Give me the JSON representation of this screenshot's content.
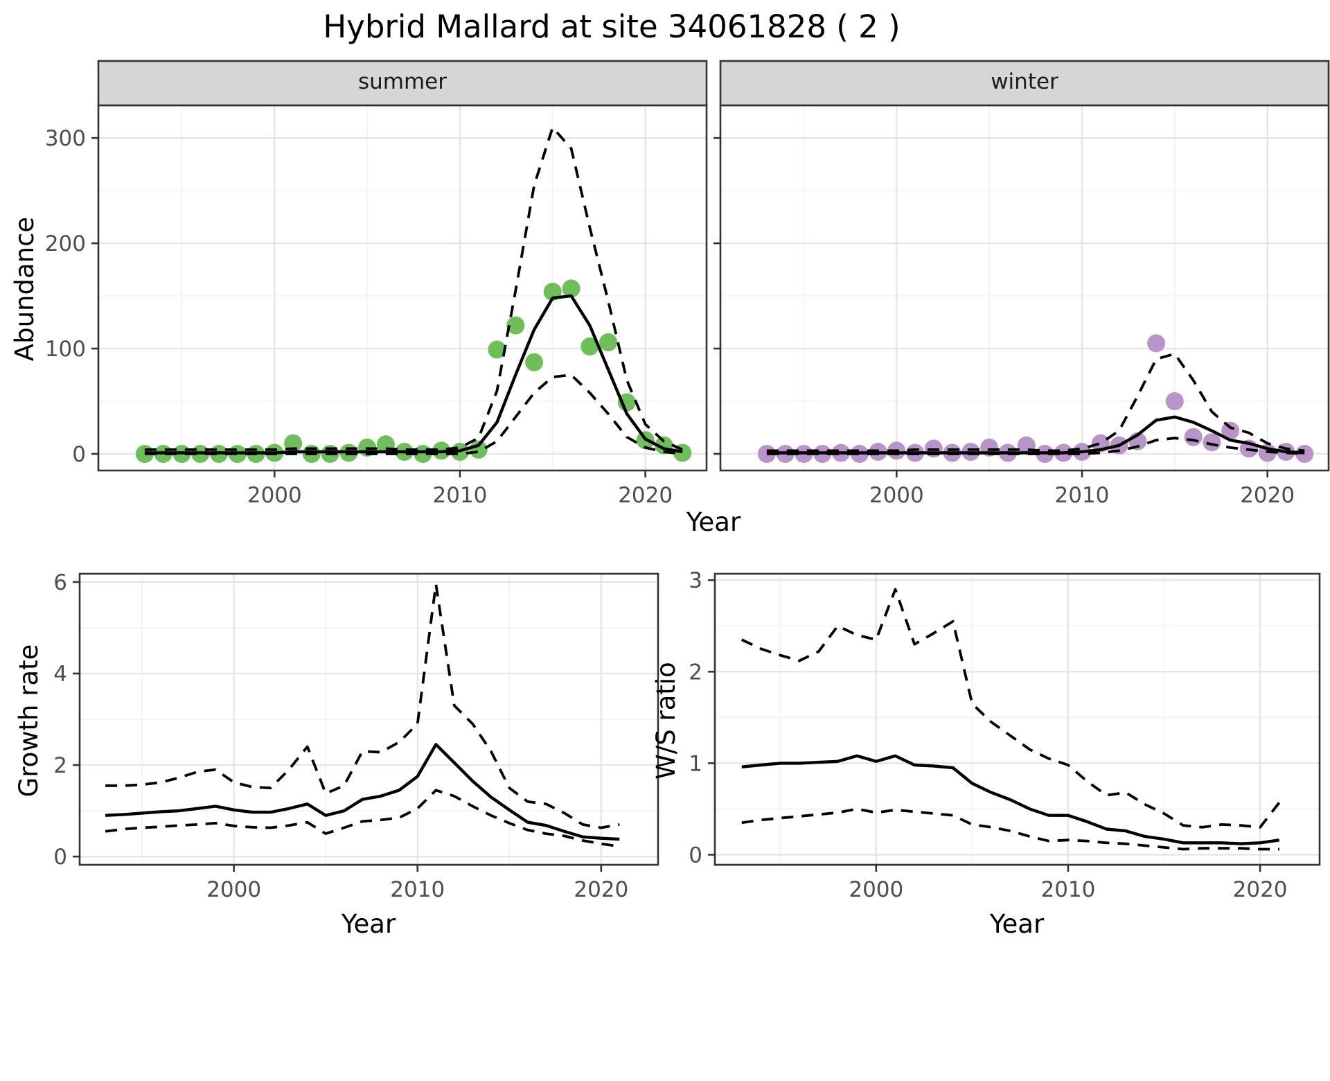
{
  "page": {
    "title": "Hybrid Mallard at site 34061828 ( 2 )"
  },
  "colors": {
    "summer_point": "#6EBE5A",
    "winter_point": "#B894C8",
    "line": "#000000",
    "grid_major": "#E4E4E4",
    "grid_minor": "#F2F2F2",
    "strip_fill": "#D6D6D6",
    "panel_border": "#333333",
    "tick_text": "#4D4D4D"
  },
  "chart_data": [
    {
      "id": "abundance",
      "type": "line+scatter",
      "title": "Hybrid Mallard at site 34061828 ( 2 )",
      "xlabel": "Year",
      "ylabel": "Abundance",
      "x_ticks": [
        2000,
        2010,
        2020
      ],
      "x_minor": [
        1995,
        2005,
        2015
      ],
      "y_ticks": [
        0,
        100,
        200,
        300
      ],
      "y_minor": [
        50,
        150,
        250
      ],
      "xlim": [
        1990.5,
        2023.3
      ],
      "ylim": [
        -15.8,
        331
      ],
      "grid": true,
      "legend": "none",
      "years": [
        1993,
        1994,
        1995,
        1996,
        1997,
        1998,
        1999,
        2000,
        2001,
        2002,
        2003,
        2004,
        2005,
        2006,
        2007,
        2008,
        2009,
        2010,
        2011,
        2012,
        2013,
        2014,
        2015,
        2016,
        2017,
        2018,
        2019,
        2020,
        2021,
        2022
      ],
      "facets": [
        {
          "label": "summer",
          "point_color": "#6EBE5A",
          "observed": [
            0,
            0,
            0,
            0,
            0,
            0,
            0,
            1,
            10,
            0,
            0,
            1,
            6,
            9,
            2,
            0,
            3,
            2,
            4,
            99,
            122,
            87,
            154,
            157,
            102,
            106,
            49,
            13,
            8,
            1
          ],
          "fit": [
            1,
            1,
            1,
            1,
            1,
            1,
            1,
            1,
            2,
            2,
            2,
            2,
            2,
            2,
            2,
            2,
            2,
            3,
            8,
            30,
            75,
            118,
            148,
            150,
            122,
            80,
            38,
            14,
            5,
            2
          ],
          "upper": [
            4,
            4,
            4,
            4,
            4,
            4,
            4,
            4,
            5,
            5,
            5,
            5,
            5,
            5,
            4,
            4,
            4,
            6,
            15,
            60,
            155,
            255,
            310,
            290,
            215,
            145,
            70,
            28,
            12,
            4
          ],
          "lower": [
            0,
            0,
            0,
            0,
            0,
            0,
            0,
            0,
            0,
            0,
            0,
            0,
            0,
            0,
            0,
            0,
            0,
            0,
            2,
            12,
            35,
            58,
            73,
            75,
            58,
            38,
            16,
            6,
            2,
            0
          ]
        },
        {
          "label": "winter",
          "point_color": "#B894C8",
          "observed": [
            0,
            0,
            0,
            0,
            1,
            0,
            2,
            3,
            1,
            5,
            1,
            2,
            6,
            1,
            8,
            0,
            1,
            2,
            10,
            8,
            12,
            105,
            50,
            16,
            11,
            22,
            5,
            1,
            2,
            0
          ],
          "fit": [
            1,
            1,
            1,
            1,
            1,
            1,
            1,
            1,
            1,
            1,
            1,
            1,
            1,
            1,
            1,
            1,
            1,
            2,
            4,
            8,
            18,
            32,
            35,
            30,
            22,
            13,
            10,
            5,
            2,
            1
          ],
          "upper": [
            3,
            3,
            3,
            3,
            3,
            3,
            3,
            3,
            4,
            4,
            4,
            4,
            4,
            4,
            4,
            3,
            3,
            5,
            10,
            22,
            55,
            90,
            95,
            70,
            40,
            25,
            20,
            10,
            5,
            3
          ],
          "lower": [
            0,
            0,
            0,
            0,
            0,
            0,
            0,
            0,
            0,
            0,
            0,
            0,
            0,
            0,
            0,
            0,
            0,
            0,
            1,
            3,
            7,
            13,
            15,
            13,
            9,
            6,
            4,
            2,
            1,
            0
          ]
        }
      ]
    },
    {
      "id": "growth_rate",
      "type": "line",
      "xlabel": "Year",
      "ylabel": "Growth rate",
      "x_ticks": [
        2000,
        2010,
        2020
      ],
      "x_minor": [
        1995,
        2005,
        2015
      ],
      "y_ticks": [
        0,
        2,
        4,
        6
      ],
      "y_minor": [
        1,
        3,
        5
      ],
      "xlim": [
        1991.6,
        2023.1
      ],
      "ylim": [
        -0.18,
        6.18
      ],
      "grid": true,
      "legend": "none",
      "years": [
        1993,
        1994,
        1995,
        1996,
        1997,
        1998,
        1999,
        2000,
        2001,
        2002,
        2003,
        2004,
        2005,
        2006,
        2007,
        2008,
        2009,
        2010,
        2011,
        2012,
        2013,
        2014,
        2015,
        2016,
        2017,
        2018,
        2019,
        2020,
        2021
      ],
      "fit": [
        0.9,
        0.92,
        0.95,
        0.98,
        1.0,
        1.05,
        1.1,
        1.02,
        0.97,
        0.97,
        1.05,
        1.15,
        0.9,
        1.0,
        1.25,
        1.32,
        1.45,
        1.75,
        2.45,
        2.05,
        1.65,
        1.3,
        1.02,
        0.75,
        0.68,
        0.55,
        0.43,
        0.4,
        0.38
      ],
      "upper": [
        1.55,
        1.55,
        1.57,
        1.62,
        1.72,
        1.85,
        1.9,
        1.62,
        1.52,
        1.5,
        1.9,
        2.4,
        1.38,
        1.55,
        2.3,
        2.28,
        2.5,
        2.9,
        5.95,
        3.3,
        2.9,
        2.3,
        1.5,
        1.2,
        1.15,
        0.95,
        0.7,
        0.63,
        0.7
      ],
      "lower": [
        0.55,
        0.6,
        0.63,
        0.65,
        0.68,
        0.7,
        0.73,
        0.67,
        0.64,
        0.63,
        0.68,
        0.75,
        0.5,
        0.63,
        0.77,
        0.8,
        0.85,
        1.05,
        1.45,
        1.32,
        1.1,
        0.9,
        0.73,
        0.58,
        0.5,
        0.45,
        0.35,
        0.28,
        0.22
      ]
    },
    {
      "id": "ws_ratio",
      "type": "line",
      "xlabel": "Year",
      "ylabel": "W/S ratio",
      "x_ticks": [
        2000,
        2010,
        2020
      ],
      "x_minor": [
        1995,
        2005,
        2015
      ],
      "y_ticks": [
        0,
        1,
        2,
        3
      ],
      "y_minor": [
        0.5,
        1.5,
        2.5
      ],
      "xlim": [
        1991.6,
        2023.1
      ],
      "ylim": [
        -0.11,
        3.07
      ],
      "grid": true,
      "legend": "none",
      "years": [
        1993,
        1994,
        1995,
        1996,
        1997,
        1998,
        1999,
        2000,
        2001,
        2002,
        2003,
        2004,
        2005,
        2006,
        2007,
        2008,
        2009,
        2010,
        2011,
        2012,
        2013,
        2014,
        2015,
        2016,
        2017,
        2018,
        2019,
        2020,
        2021
      ],
      "fit": [
        0.96,
        0.98,
        1.0,
        1.0,
        1.01,
        1.02,
        1.08,
        1.02,
        1.08,
        0.98,
        0.97,
        0.95,
        0.78,
        0.68,
        0.6,
        0.5,
        0.43,
        0.43,
        0.36,
        0.28,
        0.26,
        0.2,
        0.17,
        0.13,
        0.13,
        0.13,
        0.12,
        0.13,
        0.16
      ],
      "upper": [
        2.35,
        2.25,
        2.18,
        2.12,
        2.22,
        2.5,
        2.4,
        2.35,
        2.9,
        2.3,
        2.42,
        2.55,
        1.65,
        1.45,
        1.3,
        1.15,
        1.05,
        0.98,
        0.8,
        0.65,
        0.68,
        0.55,
        0.45,
        0.32,
        0.3,
        0.33,
        0.32,
        0.3,
        0.57
      ],
      "lower": [
        0.35,
        0.38,
        0.4,
        0.42,
        0.44,
        0.46,
        0.5,
        0.46,
        0.49,
        0.47,
        0.45,
        0.43,
        0.33,
        0.3,
        0.26,
        0.2,
        0.15,
        0.16,
        0.15,
        0.13,
        0.12,
        0.1,
        0.08,
        0.06,
        0.07,
        0.07,
        0.07,
        0.06,
        0.06
      ]
    }
  ]
}
